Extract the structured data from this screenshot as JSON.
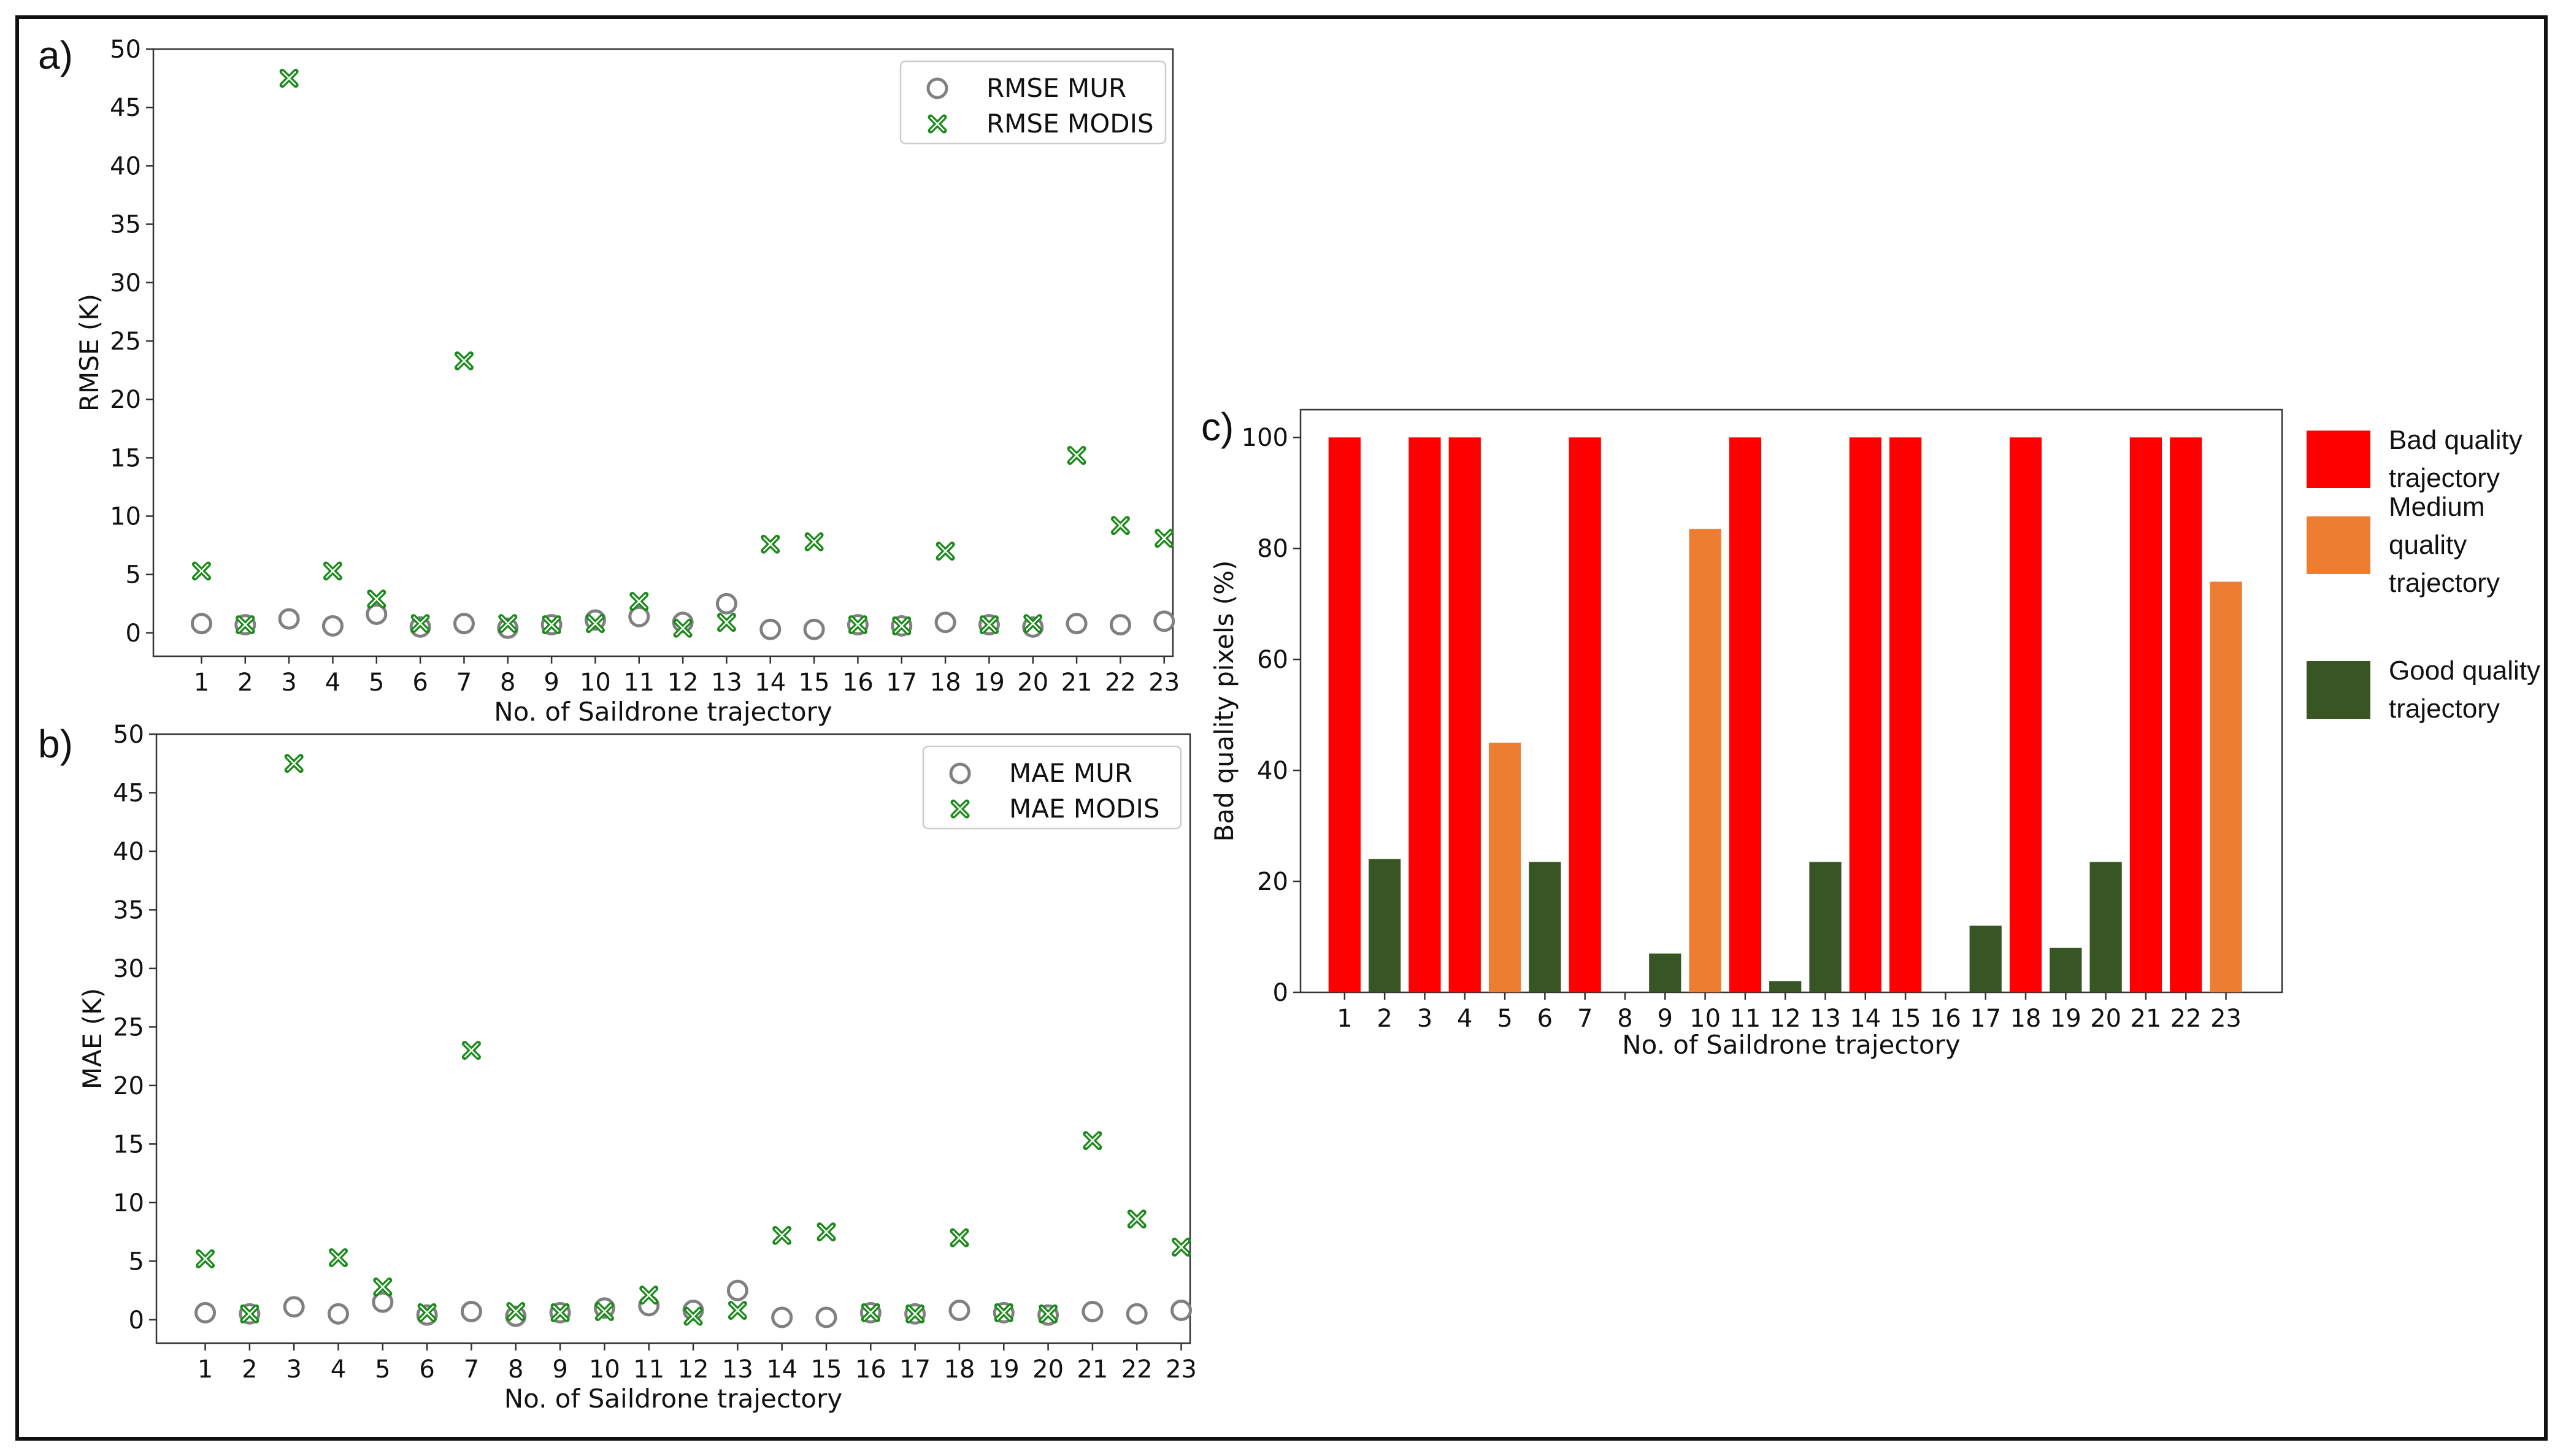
{
  "figure": {
    "panel_letters": [
      "a)",
      "b)",
      "c)"
    ]
  },
  "chart_data": [
    {
      "id": "a",
      "type": "scatter",
      "xlabel": "No. of Saildrone trajectory",
      "ylabel": "RMSE (K)",
      "categories": [
        "1",
        "2",
        "3",
        "4",
        "5",
        "6",
        "7",
        "8",
        "9",
        "10",
        "11",
        "12",
        "13",
        "14",
        "15",
        "16",
        "17",
        "18",
        "19",
        "20",
        "21",
        "22",
        "23"
      ],
      "ylim": [
        -2,
        50
      ],
      "yticks": [
        0,
        5,
        10,
        15,
        20,
        25,
        30,
        35,
        40,
        45,
        50
      ],
      "legend_position": "top-right",
      "series": [
        {
          "name": "RMSE MUR",
          "marker": "circle",
          "color": "#808080",
          "values": [
            0.8,
            0.7,
            1.2,
            0.6,
            1.6,
            0.5,
            0.8,
            0.4,
            0.7,
            1.1,
            1.4,
            0.9,
            2.5,
            0.3,
            0.3,
            0.7,
            0.6,
            0.9,
            0.7,
            0.5,
            0.8,
            0.7,
            1.0
          ]
        },
        {
          "name": "RMSE MODIS",
          "marker": "x",
          "color": "#1a8a1a",
          "values": [
            5.3,
            0.7,
            47.5,
            5.3,
            2.9,
            0.8,
            23.3,
            0.8,
            0.7,
            0.8,
            2.7,
            0.4,
            0.9,
            7.6,
            7.8,
            0.7,
            0.6,
            7.0,
            0.7,
            0.8,
            15.2,
            9.2,
            8.1
          ]
        }
      ]
    },
    {
      "id": "b",
      "type": "scatter",
      "xlabel": "No. of Saildrone trajectory",
      "ylabel": "MAE (K)",
      "categories": [
        "1",
        "2",
        "3",
        "4",
        "5",
        "6",
        "7",
        "8",
        "9",
        "10",
        "11",
        "12",
        "13",
        "14",
        "15",
        "16",
        "17",
        "18",
        "19",
        "20",
        "21",
        "22",
        "23"
      ],
      "ylim": [
        -2,
        50
      ],
      "yticks": [
        0,
        5,
        10,
        15,
        20,
        25,
        30,
        35,
        40,
        45,
        50
      ],
      "legend_position": "top-right",
      "series": [
        {
          "name": "MAE MUR",
          "marker": "circle",
          "color": "#808080",
          "values": [
            0.6,
            0.5,
            1.1,
            0.5,
            1.5,
            0.4,
            0.7,
            0.3,
            0.6,
            1.0,
            1.2,
            0.8,
            2.5,
            0.2,
            0.2,
            0.6,
            0.5,
            0.8,
            0.6,
            0.4,
            0.7,
            0.5,
            0.8
          ]
        },
        {
          "name": "MAE MODIS",
          "marker": "x",
          "color": "#1a8a1a",
          "values": [
            5.2,
            0.5,
            47.5,
            5.3,
            2.8,
            0.6,
            23.0,
            0.7,
            0.6,
            0.7,
            2.1,
            0.3,
            0.8,
            7.2,
            7.5,
            0.6,
            0.5,
            7.0,
            0.6,
            0.5,
            15.3,
            8.6,
            6.2
          ]
        }
      ]
    },
    {
      "id": "c",
      "type": "bar",
      "xlabel": "No. of Saildrone trajectory",
      "ylabel": "Bad quality pixels (%)",
      "categories": [
        "1",
        "2",
        "3",
        "4",
        "5",
        "6",
        "7",
        "8",
        "9",
        "10",
        "11",
        "12",
        "13",
        "14",
        "15",
        "16",
        "17",
        "18",
        "19",
        "20",
        "21",
        "22",
        "23"
      ],
      "values": [
        100,
        24,
        100,
        100,
        45,
        23.5,
        100,
        0,
        7,
        83.5,
        100,
        2,
        23.5,
        100,
        100,
        0,
        12,
        100,
        8,
        23.5,
        100,
        100,
        74
      ],
      "quality": [
        "bad",
        "good",
        "bad",
        "bad",
        "medium",
        "good",
        "bad",
        "good",
        "good",
        "medium",
        "bad",
        "good",
        "good",
        "bad",
        "bad",
        "good",
        "good",
        "bad",
        "good",
        "good",
        "bad",
        "bad",
        "medium"
      ],
      "ylim": [
        0,
        105
      ],
      "yticks": [
        0,
        20,
        40,
        60,
        80,
        100
      ],
      "legend_position": "right, outside",
      "legend": [
        {
          "key": "bad",
          "label_lines": [
            "Bad quality",
            "trajectory"
          ],
          "color": "#ff0000"
        },
        {
          "key": "medium",
          "label_lines": [
            "Medium",
            "quality",
            "trajectory"
          ],
          "color": "#ed7d31"
        },
        {
          "key": "good",
          "label_lines": [
            "Good quality",
            "trajectory"
          ],
          "color": "#375623"
        }
      ]
    }
  ]
}
